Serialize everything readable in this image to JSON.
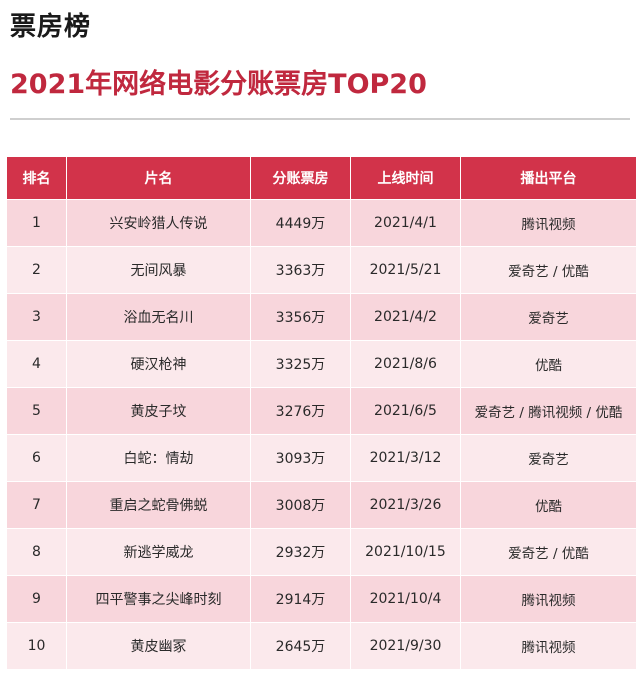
{
  "header": {
    "section_label": "票房榜",
    "title": "2021年网络电影分账票房TOP20"
  },
  "table": {
    "columns": [
      "排名",
      "片名",
      "分账票房",
      "上线时间",
      "播出平台"
    ],
    "rows": [
      {
        "rank": "1",
        "title": "兴安岭猎人传说",
        "box_office": "4449万",
        "release_date": "2021/4/1",
        "platform": "腾讯视频"
      },
      {
        "rank": "2",
        "title": "无间风暴",
        "box_office": "3363万",
        "release_date": "2021/5/21",
        "platform": "爱奇艺 / 优酷"
      },
      {
        "rank": "3",
        "title": "浴血无名川",
        "box_office": "3356万",
        "release_date": "2021/4/2",
        "platform": "爱奇艺"
      },
      {
        "rank": "4",
        "title": "硬汉枪神",
        "box_office": "3325万",
        "release_date": "2021/8/6",
        "platform": "优酷"
      },
      {
        "rank": "5",
        "title": "黄皮子坟",
        "box_office": "3276万",
        "release_date": "2021/6/5",
        "platform": "爱奇艺 / 腾讯视频 / 优酷"
      },
      {
        "rank": "6",
        "title": "白蛇：情劫",
        "box_office": "3093万",
        "release_date": "2021/3/12",
        "platform": "爱奇艺"
      },
      {
        "rank": "7",
        "title": "重启之蛇骨佛蜕",
        "box_office": "3008万",
        "release_date": "2021/3/26",
        "platform": "优酷"
      },
      {
        "rank": "8",
        "title": "新逃学威龙",
        "box_office": "2932万",
        "release_date": "2021/10/15",
        "platform": "爱奇艺 / 优酷"
      },
      {
        "rank": "9",
        "title": "四平警事之尖峰时刻",
        "box_office": "2914万",
        "release_date": "2021/10/4",
        "platform": "腾讯视频"
      },
      {
        "rank": "10",
        "title": "黄皮幽冢",
        "box_office": "2645万",
        "release_date": "2021/9/30",
        "platform": "腾讯视频"
      }
    ]
  },
  "colors": {
    "title_red": "#c0283e",
    "header_red": "#d2334a",
    "row_odd": "#f8d6dc",
    "row_even": "#fbe9ec"
  }
}
